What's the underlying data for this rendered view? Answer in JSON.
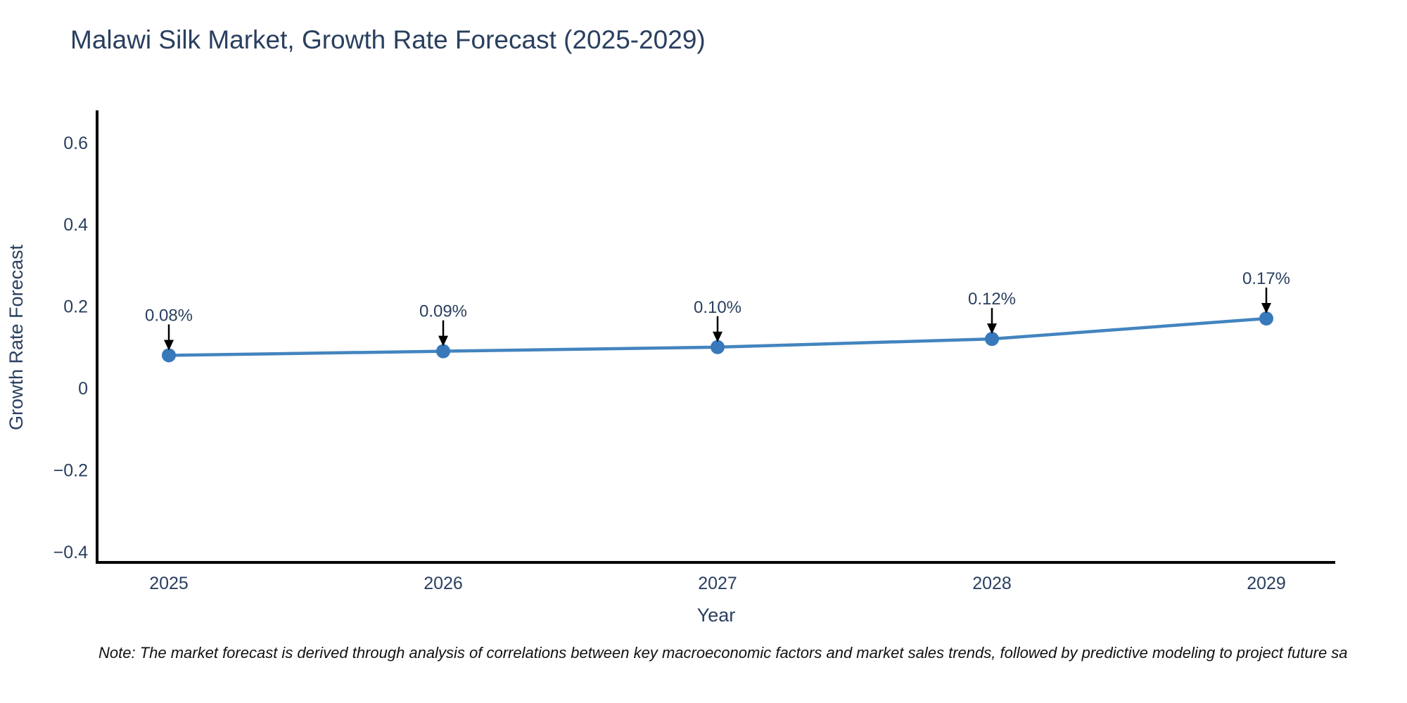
{
  "note": "Note: The market forecast is derived through analysis of correlations between key macroeconomic factors and market sales trends, followed by predictive modeling to project future sa",
  "colors": {
    "line": "#4384bf",
    "marker": "#3779bb",
    "axis": "#000000",
    "arrow": "#000000",
    "text": "#2a3f5f",
    "note_text": "#111111"
  },
  "chart_data": {
    "type": "line",
    "title": "Malawi Silk Market, Growth Rate Forecast (2025-2029)",
    "xlabel": "Year",
    "ylabel": "Growth Rate Forecast",
    "x": [
      2025,
      2026,
      2027,
      2028,
      2029
    ],
    "values": [
      0.08,
      0.09,
      0.1,
      0.12,
      0.17
    ],
    "point_labels": [
      "0.08%",
      "0.09%",
      "0.10%",
      "0.12%",
      "0.17%"
    ],
    "x_tick_labels": [
      "2025",
      "2026",
      "2027",
      "2028",
      "2029"
    ],
    "y_ticks": [
      0.6,
      0.4,
      0.2,
      0,
      -0.2,
      -0.4
    ],
    "y_tick_labels": [
      "0.6",
      "0.4",
      "0.2",
      "0",
      "−0.2",
      "−0.4"
    ],
    "ylim": [
      -0.45,
      0.67
    ],
    "grid": false,
    "legend": false,
    "annotations": "value label with downward arrow above each point"
  }
}
